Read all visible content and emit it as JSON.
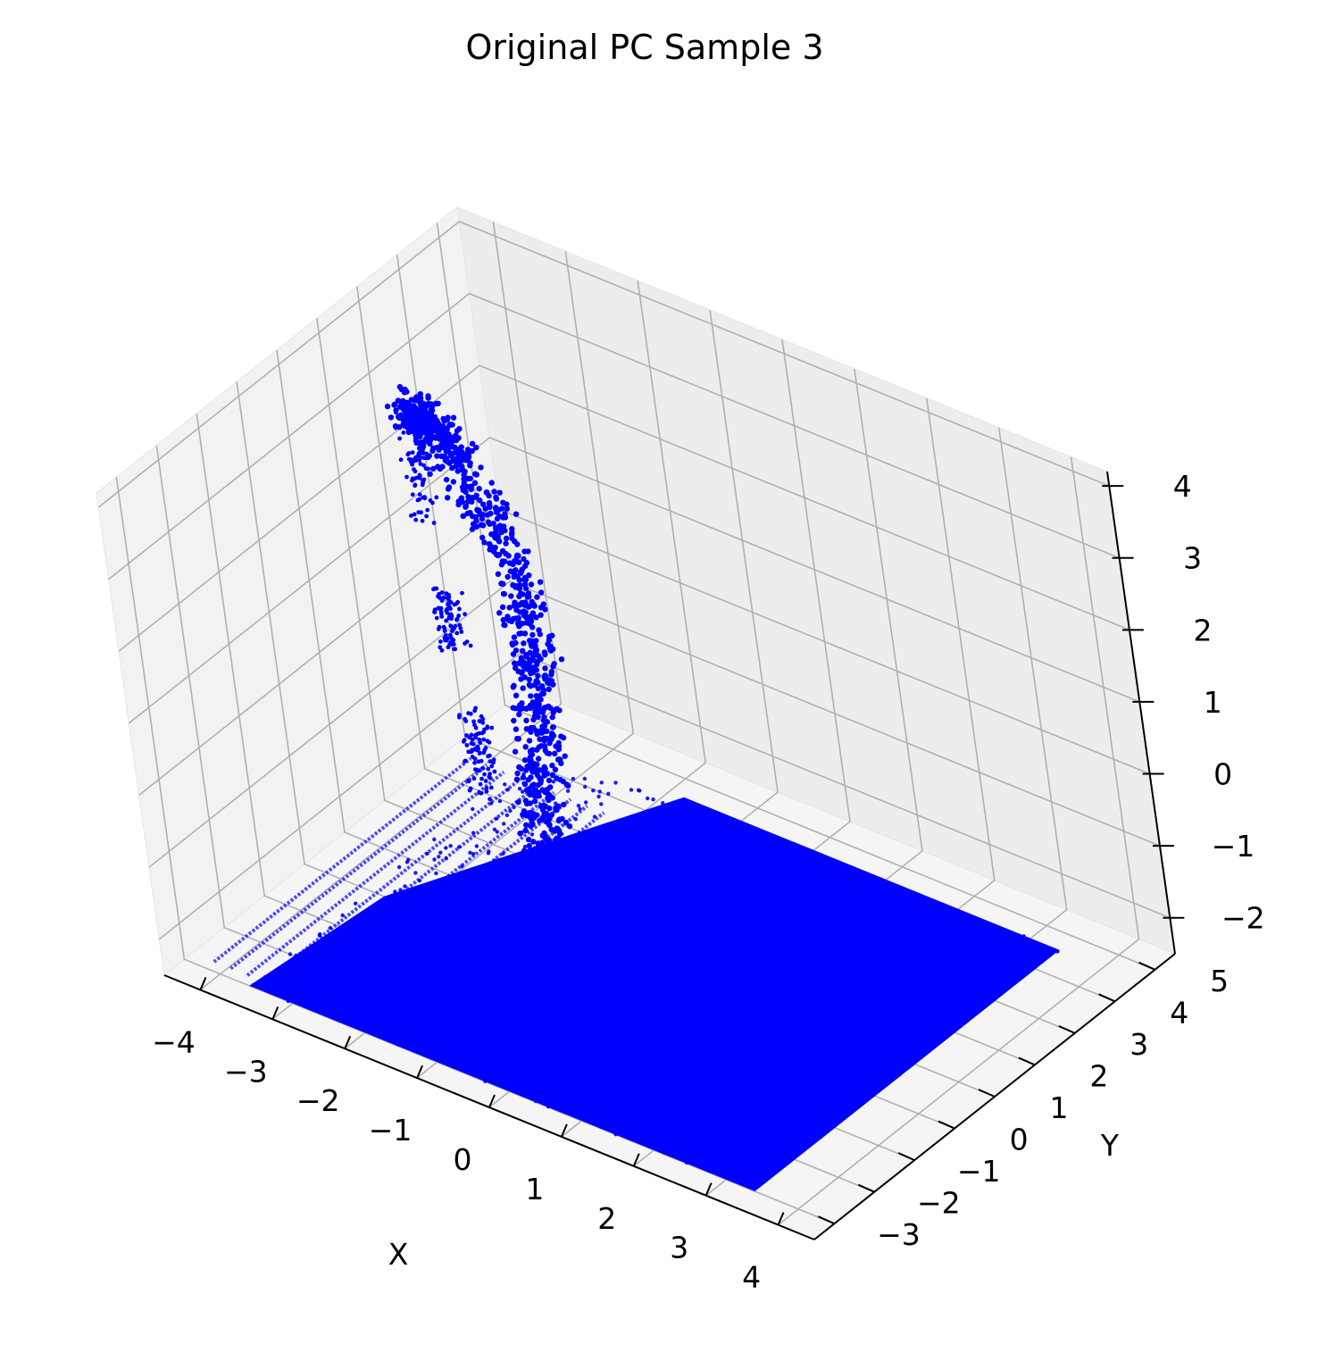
{
  "chart_data": {
    "type": "scatter",
    "title": "Original PC Sample 3",
    "xlabel": "X",
    "ylabel": "Y",
    "zlabel": "",
    "projection": "3d",
    "grid": true,
    "marker_color": "#0000ff",
    "pane_color": "#f2f2f2",
    "grid_color": "#b0b0b0",
    "xlim": [
      -4.5,
      4.5
    ],
    "ylim": [
      -3.5,
      5.5
    ],
    "zlim": [
      -2.5,
      4.2
    ],
    "x_ticks": [
      -4,
      -3,
      -2,
      -1,
      0,
      1,
      2,
      3,
      4
    ],
    "y_ticks": [
      -3,
      -2,
      -1,
      0,
      1,
      2,
      3,
      4,
      5
    ],
    "z_ticks": [
      -2,
      -1,
      0,
      1,
      2,
      3,
      4
    ],
    "x_tick_labels": [
      "−4",
      "−3",
      "−2",
      "−1",
      "0",
      "1",
      "2",
      "3",
      "4"
    ],
    "y_tick_labels": [
      "−3",
      "−2",
      "−1",
      "0",
      "1",
      "2",
      "3",
      "4",
      "5"
    ],
    "z_tick_labels": [
      "−2",
      "−1",
      "0",
      "1",
      "2",
      "3",
      "4"
    ],
    "series": [
      {
        "description_ground_plane": "dense floor points",
        "ground": {
          "x": [
            -3.6,
            3.4
          ],
          "y": [
            -3.0,
            4.6
          ],
          "z": -2.5
        },
        "left_stripes": {
          "x": [
            -4.2,
            -1.2
          ],
          "y": [
            -2.8,
            3.6
          ],
          "z": -2.5,
          "count": 14
        },
        "arm_path": [
          [
            -0.5,
            -1.0,
            -2.0
          ],
          [
            -0.6,
            -0.5,
            -0.6
          ],
          [
            -0.7,
            -0.2,
            0.6
          ],
          [
            -0.9,
            0.3,
            1.6
          ],
          [
            -1.4,
            0.9,
            2.6
          ],
          [
            -2.4,
            1.4,
            3.4
          ],
          [
            -3.0,
            1.8,
            3.5
          ],
          [
            -3.4,
            2.2,
            3.3
          ]
        ],
        "gripper_segments": [
          {
            "x": -3.6,
            "y": 2.4,
            "z": [
              1.6,
              3.2
            ]
          },
          {
            "x": -3.5,
            "y": 2.5,
            "z": [
              -0.2,
              0.6
            ]
          },
          {
            "x": -3.4,
            "y": 2.6,
            "z": [
              -2.2,
              -1.1
            ]
          }
        ]
      }
    ]
  }
}
